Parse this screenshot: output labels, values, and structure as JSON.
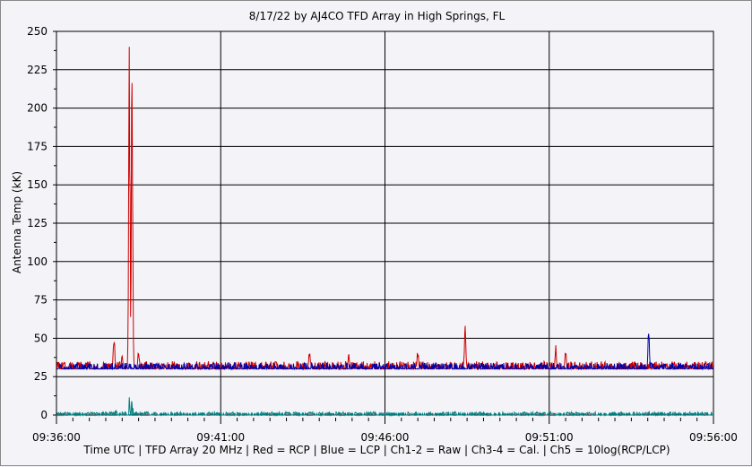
{
  "chart_data": {
    "type": "line",
    "title": "8/17/22  by  AJ4CO TFD Array  in  High Springs, FL",
    "xlabel": "Time UTC | TFD Array 20 MHz | Red = RCP | Blue = LCP | Ch1-2 = Raw | Ch3-4 = Cal. | Ch5 = 10log(RCP/LCP)",
    "ylabel": "Antenna Temp (kK)",
    "ylim": [
      0,
      250
    ],
    "yticks": [
      "0",
      "25",
      "50",
      "75",
      "100",
      "125",
      "150",
      "175",
      "200",
      "225",
      "250"
    ],
    "xlim_minutes": [
      0,
      20
    ],
    "xticks": [
      "09:36:00",
      "09:41:00",
      "09:46:00",
      "09:51:00",
      "09:56:00"
    ],
    "grid": true,
    "series": [
      {
        "name": "RCP",
        "color": "#cc0000",
        "baseline": 30,
        "noise": 5,
        "spikes": [
          {
            "t": 1.75,
            "v": 57
          },
          {
            "t": 2.0,
            "v": 40
          },
          {
            "t": 2.22,
            "v": 250
          },
          {
            "t": 2.3,
            "v": 250
          },
          {
            "t": 2.5,
            "v": 45
          },
          {
            "t": 7.7,
            "v": 43
          },
          {
            "t": 8.9,
            "v": 41
          },
          {
            "t": 11.0,
            "v": 44
          },
          {
            "t": 12.44,
            "v": 66
          },
          {
            "t": 15.2,
            "v": 46
          },
          {
            "t": 15.5,
            "v": 44
          }
        ]
      },
      {
        "name": "LCP",
        "color": "#0000aa",
        "baseline": 30,
        "noise": 4,
        "spikes": [
          {
            "t": 18.03,
            "v": 60
          }
        ]
      },
      {
        "name": "Ch5",
        "color": "#008080",
        "baseline": 1,
        "noise": 1,
        "spikes": [
          {
            "t": 1.8,
            "v": 4
          },
          {
            "t": 2.2,
            "v": 15
          },
          {
            "t": 2.3,
            "v": 12
          }
        ]
      }
    ]
  }
}
